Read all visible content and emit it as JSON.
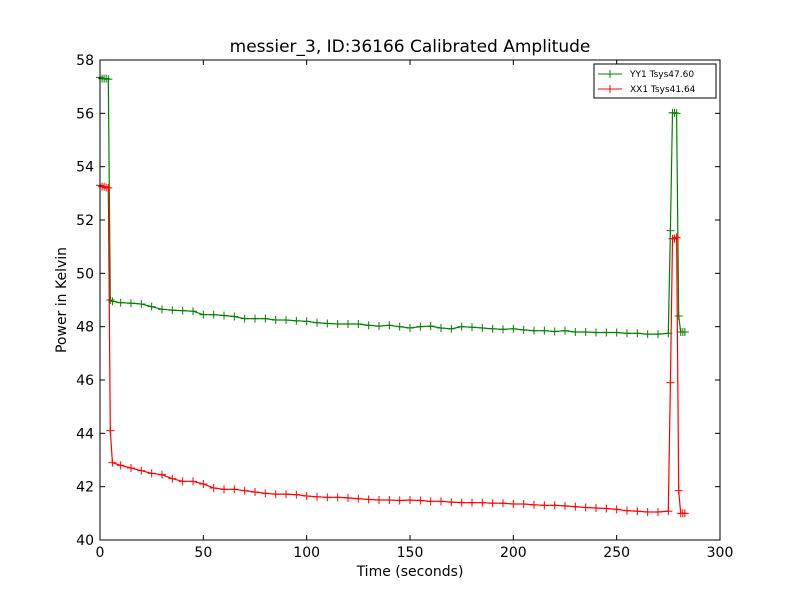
{
  "chart_data": {
    "type": "line",
    "title": "messier_3, ID:36166 Calibrated Amplitude",
    "xlabel": "Time (seconds)",
    "ylabel": "Power in Kelvin",
    "xlim": [
      0,
      300
    ],
    "ylim": [
      40,
      58
    ],
    "xticks": [
      0,
      50,
      100,
      150,
      200,
      250,
      300
    ],
    "yticks": [
      40,
      42,
      44,
      46,
      48,
      50,
      52,
      54,
      56,
      58
    ],
    "grid": false,
    "legend": "top-right",
    "series": [
      {
        "name": "YY1 Tsys47.60",
        "color": "#008000",
        "x": [
          0,
          1,
          2,
          3,
          4,
          5,
          6,
          10,
          15,
          20,
          25,
          30,
          35,
          40,
          45,
          50,
          55,
          60,
          65,
          70,
          75,
          80,
          85,
          90,
          95,
          100,
          105,
          110,
          115,
          120,
          125,
          130,
          135,
          140,
          145,
          150,
          155,
          160,
          165,
          170,
          175,
          180,
          185,
          190,
          195,
          200,
          205,
          210,
          215,
          220,
          225,
          230,
          235,
          240,
          245,
          250,
          255,
          260,
          265,
          270,
          275,
          276,
          277,
          278,
          279,
          280,
          281,
          282,
          283
        ],
        "y": [
          57.35,
          57.3,
          57.3,
          57.3,
          57.28,
          49.0,
          48.95,
          48.9,
          48.88,
          48.85,
          48.75,
          48.65,
          48.62,
          48.6,
          48.58,
          48.45,
          48.45,
          48.42,
          48.38,
          48.3,
          48.3,
          48.3,
          48.25,
          48.25,
          48.22,
          48.2,
          48.15,
          48.12,
          48.1,
          48.1,
          48.1,
          48.05,
          48.02,
          48.05,
          48.0,
          47.95,
          48.0,
          48.02,
          47.95,
          47.92,
          48.0,
          47.98,
          47.95,
          47.92,
          47.9,
          47.92,
          47.88,
          47.85,
          47.85,
          47.82,
          47.85,
          47.8,
          47.8,
          47.78,
          47.78,
          47.78,
          47.75,
          47.75,
          47.72,
          47.72,
          47.75,
          51.6,
          56.02,
          56.02,
          56.0,
          48.4,
          47.8,
          47.8,
          47.8
        ]
      },
      {
        "name": "XX1 Tsys41.64",
        "color": "#ff0000",
        "x": [
          0,
          1,
          2,
          3,
          4,
          5,
          6,
          10,
          15,
          20,
          25,
          30,
          35,
          40,
          45,
          50,
          55,
          60,
          65,
          70,
          75,
          80,
          85,
          90,
          95,
          100,
          105,
          110,
          115,
          120,
          125,
          130,
          135,
          140,
          145,
          150,
          155,
          160,
          165,
          170,
          175,
          180,
          185,
          190,
          195,
          200,
          205,
          210,
          215,
          220,
          225,
          230,
          235,
          240,
          245,
          250,
          255,
          260,
          265,
          270,
          275,
          276,
          277,
          278,
          279,
          280,
          281,
          282,
          283
        ],
        "y": [
          53.3,
          53.25,
          53.25,
          53.22,
          53.2,
          44.1,
          42.9,
          42.8,
          42.7,
          42.6,
          42.5,
          42.45,
          42.3,
          42.2,
          42.2,
          42.1,
          41.95,
          41.9,
          41.9,
          41.85,
          41.8,
          41.75,
          41.72,
          41.72,
          41.7,
          41.65,
          41.62,
          41.6,
          41.6,
          41.58,
          41.55,
          41.52,
          41.5,
          41.5,
          41.48,
          41.5,
          41.48,
          41.45,
          41.45,
          41.42,
          41.4,
          41.4,
          41.4,
          41.38,
          41.38,
          41.35,
          41.35,
          41.32,
          41.3,
          41.3,
          41.28,
          41.25,
          41.22,
          41.2,
          41.18,
          41.15,
          41.1,
          41.08,
          41.05,
          41.05,
          41.08,
          45.9,
          51.3,
          51.3,
          51.35,
          41.85,
          41.0,
          41.0,
          41.0
        ]
      }
    ]
  }
}
